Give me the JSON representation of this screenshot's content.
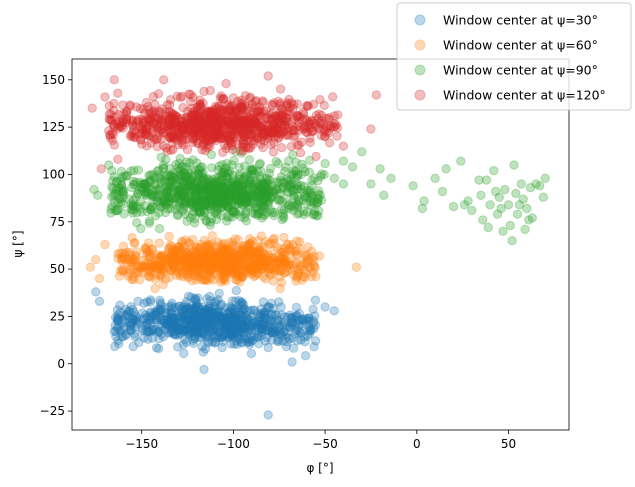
{
  "chart_data": {
    "type": "scatter",
    "title": "",
    "xlabel": "φ [°]",
    "ylabel": "ψ [°]",
    "xlim": [
      -188,
      83
    ],
    "ylim": [
      -35,
      161
    ],
    "xticks": [
      -150,
      -100,
      -50,
      0,
      50
    ],
    "yticks": [
      -25,
      0,
      25,
      50,
      75,
      100,
      125,
      150
    ],
    "xtick_labels": [
      "−150",
      "−100",
      "−50",
      "0",
      "50"
    ],
    "ytick_labels": [
      "−25",
      "0",
      "25",
      "50",
      "75",
      "100",
      "125",
      "150"
    ],
    "grid": false,
    "legend_position": "top-right",
    "marker_alpha": 0.3,
    "series": [
      {
        "name": "Window center at ψ=30°",
        "color": "#1f77b4",
        "clusters": [
          {
            "x_range": [
              -165,
              -55
            ],
            "y_range": [
              5,
              38
            ],
            "density": 800
          }
        ],
        "outliers": [
          {
            "x": -81,
            "y": -27
          },
          {
            "x": -116,
            "y": -3
          },
          {
            "x": -175,
            "y": 38
          },
          {
            "x": -173,
            "y": 33
          },
          {
            "x": -45,
            "y": 28
          },
          {
            "x": -50,
            "y": 30
          },
          {
            "x": -56,
            "y": 9
          },
          {
            "x": -68,
            "y": 1
          }
        ]
      },
      {
        "name": "Window center at ψ=60°",
        "color": "#ff7f0e",
        "clusters": [
          {
            "x_range": [
              -163,
              -55
            ],
            "y_range": [
              40,
              68
            ],
            "density": 800
          }
        ],
        "outliers": [
          {
            "x": -33,
            "y": 51
          },
          {
            "x": -178,
            "y": 51
          },
          {
            "x": -175,
            "y": 55
          },
          {
            "x": -173,
            "y": 45
          },
          {
            "x": -170,
            "y": 63
          },
          {
            "x": -53,
            "y": 57
          },
          {
            "x": -55,
            "y": 46
          }
        ]
      },
      {
        "name": "Window center at ψ=90°",
        "color": "#2ca02c",
        "clusters": [
          {
            "x_range": [
              -167,
              -50
            ],
            "y_range": [
              70,
              112
            ],
            "density": 900
          }
        ],
        "outliers": [
          {
            "x": -176,
            "y": 92
          },
          {
            "x": -174,
            "y": 89
          },
          {
            "x": -168,
            "y": 105
          },
          {
            "x": -40,
            "y": 107
          },
          {
            "x": -35,
            "y": 104
          },
          {
            "x": -30,
            "y": 112
          },
          {
            "x": -25,
            "y": 95
          },
          {
            "x": -20,
            "y": 103
          },
          {
            "x": -18,
            "y": 89
          },
          {
            "x": -14,
            "y": 98
          },
          {
            "x": -40,
            "y": 95
          },
          {
            "x": -45,
            "y": 98
          },
          {
            "x": -2,
            "y": 94
          },
          {
            "x": 3,
            "y": 82
          },
          {
            "x": 4,
            "y": 86
          },
          {
            "x": 10,
            "y": 98
          },
          {
            "x": 14,
            "y": 91
          },
          {
            "x": 16,
            "y": 103
          },
          {
            "x": 20,
            "y": 83
          },
          {
            "x": 24,
            "y": 107
          },
          {
            "x": 26,
            "y": 84
          },
          {
            "x": 30,
            "y": 81
          },
          {
            "x": 34,
            "y": 97
          },
          {
            "x": 36,
            "y": 76
          },
          {
            "x": 38,
            "y": 97
          },
          {
            "x": 40,
            "y": 84
          },
          {
            "x": 42,
            "y": 102
          },
          {
            "x": 44,
            "y": 79
          },
          {
            "x": 45,
            "y": 88
          },
          {
            "x": 46,
            "y": 82
          },
          {
            "x": 47,
            "y": 70
          },
          {
            "x": 48,
            "y": 92
          },
          {
            "x": 50,
            "y": 84
          },
          {
            "x": 51,
            "y": 73
          },
          {
            "x": 52,
            "y": 65
          },
          {
            "x": 53,
            "y": 105
          },
          {
            "x": 54,
            "y": 90
          },
          {
            "x": 55,
            "y": 79
          },
          {
            "x": 57,
            "y": 95
          },
          {
            "x": 58,
            "y": 87
          },
          {
            "x": 59,
            "y": 71
          },
          {
            "x": 60,
            "y": 82
          },
          {
            "x": 62,
            "y": 93
          },
          {
            "x": 63,
            "y": 77
          },
          {
            "x": 65,
            "y": 95
          },
          {
            "x": 67,
            "y": 94
          },
          {
            "x": 69,
            "y": 88
          },
          {
            "x": 70,
            "y": 98
          },
          {
            "x": 35,
            "y": 89
          },
          {
            "x": 39,
            "y": 72
          },
          {
            "x": 28,
            "y": 86
          },
          {
            "x": 56,
            "y": 84
          },
          {
            "x": 61,
            "y": 76
          },
          {
            "x": 43,
            "y": 91
          }
        ]
      },
      {
        "name": "Window center at ψ=120°",
        "color": "#d62728",
        "clusters": [
          {
            "x_range": [
              -168,
              -43
            ],
            "y_range": [
              108,
              145
            ],
            "density": 900
          }
        ],
        "outliers": [
          {
            "x": -177,
            "y": 135
          },
          {
            "x": -170,
            "y": 141
          },
          {
            "x": -165,
            "y": 150
          },
          {
            "x": -138,
            "y": 150
          },
          {
            "x": -104,
            "y": 148
          },
          {
            "x": -81,
            "y": 152
          },
          {
            "x": -22,
            "y": 142
          },
          {
            "x": -25,
            "y": 124
          },
          {
            "x": -172,
            "y": 103
          },
          {
            "x": -163,
            "y": 108
          },
          {
            "x": -40,
            "y": 115
          },
          {
            "x": -48,
            "y": 130
          }
        ]
      }
    ]
  }
}
